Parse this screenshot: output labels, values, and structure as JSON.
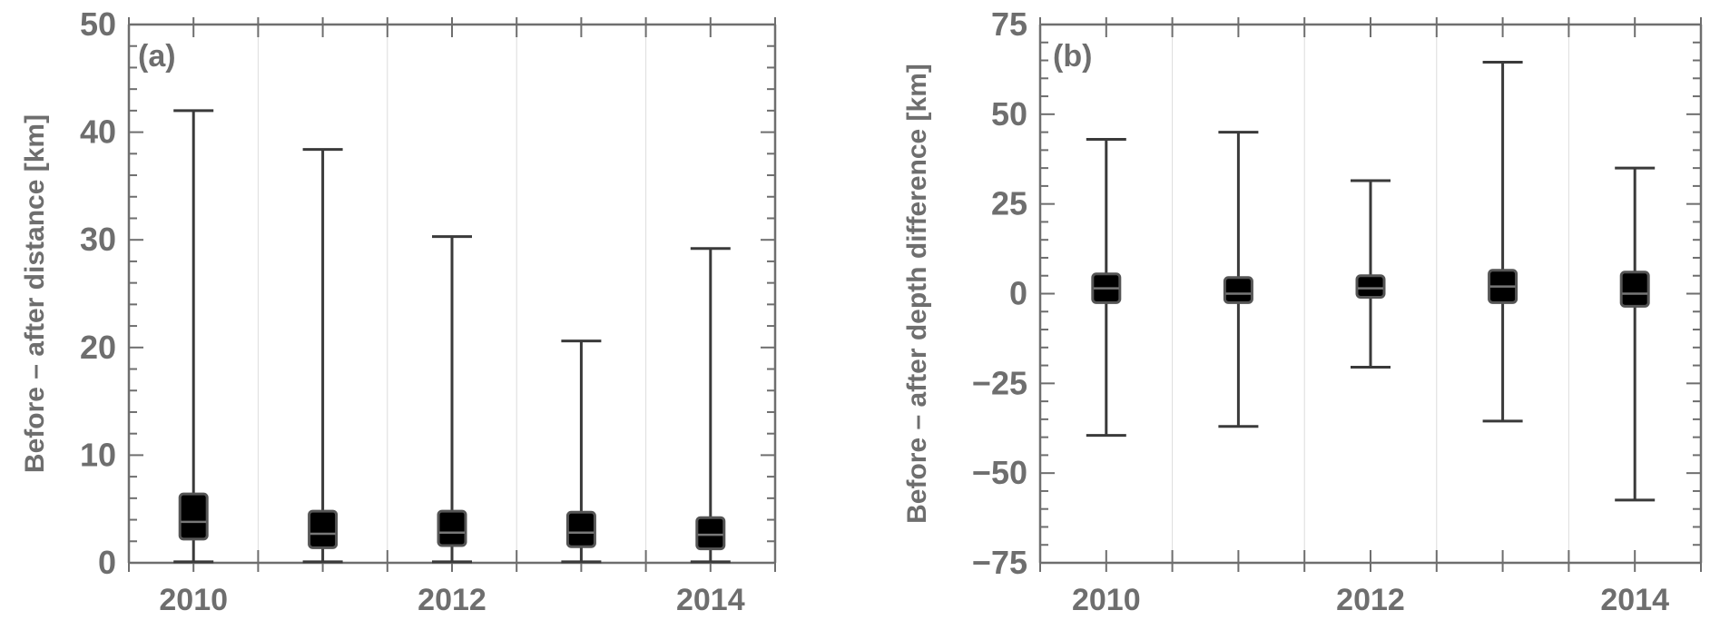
{
  "chart_data": [
    {
      "type": "box",
      "panel_label": "(a)",
      "xlabel": "",
      "ylabel": "Before – after distance [km]",
      "x": [
        2010,
        2011,
        2012,
        2013,
        2014
      ],
      "xticklabels": [
        "2010",
        "2012",
        "2014"
      ],
      "ylim": [
        0,
        50
      ],
      "yticks": [
        0,
        10,
        20,
        30,
        40,
        50
      ],
      "grid": "vertical",
      "boxes": [
        {
          "x": 2010,
          "min": 0.1,
          "q1": 2.2,
          "median": 3.8,
          "q3": 6.4,
          "max": 42
        },
        {
          "x": 2011,
          "min": 0.1,
          "q1": 1.4,
          "median": 2.7,
          "q3": 4.8,
          "max": 38.4
        },
        {
          "x": 2012,
          "min": 0.1,
          "q1": 1.6,
          "median": 2.8,
          "q3": 4.8,
          "max": 30.3
        },
        {
          "x": 2013,
          "min": 0.1,
          "q1": 1.5,
          "median": 2.8,
          "q3": 4.7,
          "max": 20.6
        },
        {
          "x": 2014,
          "min": 0.1,
          "q1": 1.3,
          "median": 2.6,
          "q3": 4.2,
          "max": 29.2
        }
      ]
    },
    {
      "type": "box",
      "panel_label": "(b)",
      "xlabel": "",
      "ylabel": "Before – after depth difference [km]",
      "x": [
        2010,
        2011,
        2012,
        2013,
        2014
      ],
      "xticklabels": [
        "2010",
        "2012",
        "2014"
      ],
      "ylim": [
        -75,
        75
      ],
      "yticks": [
        -75,
        -50,
        -25,
        0,
        25,
        50,
        75
      ],
      "yticklabels": [
        "−75",
        "−50",
        "−25",
        "0",
        "25",
        "50",
        "75"
      ],
      "grid": "vertical",
      "boxes": [
        {
          "x": 2010,
          "min": -39.5,
          "q1": -2.5,
          "median": 1.5,
          "q3": 5.5,
          "max": 43
        },
        {
          "x": 2011,
          "min": -37,
          "q1": -2.5,
          "median": 0,
          "q3": 4.5,
          "max": 45
        },
        {
          "x": 2012,
          "min": -20.5,
          "q1": -1,
          "median": 1.5,
          "q3": 5,
          "max": 31.5
        },
        {
          "x": 2013,
          "min": -35.5,
          "q1": -2.5,
          "median": 2,
          "q3": 6.5,
          "max": 64.5
        },
        {
          "x": 2014,
          "min": -57.5,
          "q1": -3.5,
          "median": 0,
          "q3": 6,
          "max": 35
        }
      ]
    }
  ],
  "colors": {
    "axis": "#6e6e6e",
    "text": "#6e6e6e",
    "grid": "#dcdcdc",
    "whisker": "#3a3a3a",
    "box_fill": "#000000",
    "box_edge": "#555555",
    "median": "#777777"
  }
}
